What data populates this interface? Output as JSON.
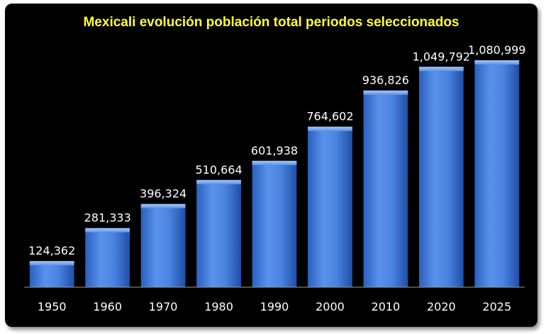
{
  "chart_data": {
    "type": "bar",
    "title": "Mexicali evolución población total periodos seleccionados",
    "categories": [
      "1950",
      "1960",
      "1970",
      "1980",
      "1990",
      "2000",
      "2010",
      "2020",
      "2025"
    ],
    "values": [
      124362,
      281333,
      396324,
      510664,
      601938,
      764602,
      936826,
      1049792,
      1080999
    ],
    "data_labels": [
      "124,362",
      "281,333",
      "396,324",
      "510,664",
      "601,938",
      "764,602",
      "936,826",
      "1,049,792",
      "1,080,999"
    ],
    "xlabel": "",
    "ylabel": "",
    "ylim": [
      0,
      1250000
    ],
    "grid": false,
    "legend": "none",
    "colors": {
      "background": "#000000",
      "title": "#ffff33",
      "bar_light": "#6fa3f0",
      "bar_mid": "#3d78d8",
      "bar_dark": "#1f4fa6",
      "labels": "#ffffff",
      "axis": "#9a9a9a"
    }
  }
}
